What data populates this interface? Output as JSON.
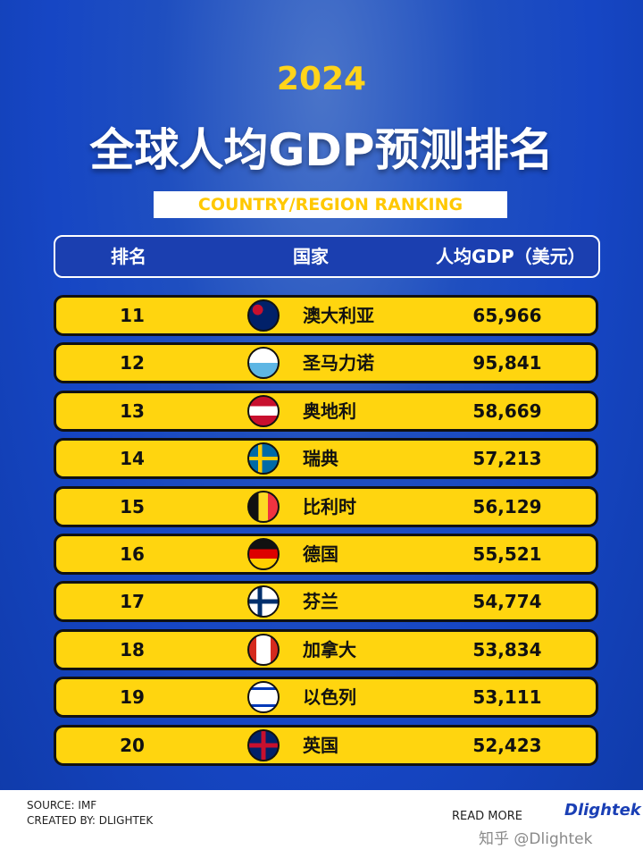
{
  "header": {
    "year": "2024",
    "title": "全球人均GDP预测排名",
    "subtitle": "COUNTRY/REGION RANKING"
  },
  "table": {
    "columns": [
      "排名",
      "国家",
      "人均GDP（美元）"
    ],
    "rows": [
      [
        11,
        "澳大利亚",
        "65,966"
      ],
      [
        12,
        "圣马力诺",
        "95,841"
      ],
      [
        13,
        "奥地利",
        "58,669"
      ],
      [
        14,
        "瑞典",
        "57,213"
      ],
      [
        15,
        "比利时",
        "56,129"
      ],
      [
        16,
        "德国",
        "55,521"
      ],
      [
        17,
        "芬兰",
        "54,774"
      ],
      [
        18,
        "加拿大",
        "53,834"
      ],
      [
        19,
        "以色列",
        "53,111"
      ],
      [
        20,
        "英国",
        "52,423"
      ]
    ]
  },
  "footer": {
    "source": "SOURCE: IMF",
    "created_by": "CREATED BY: DLIGHTEK",
    "read_more": "READ MORE",
    "brand": "Dlightek",
    "watermark": "知乎 @Dlightek"
  }
}
